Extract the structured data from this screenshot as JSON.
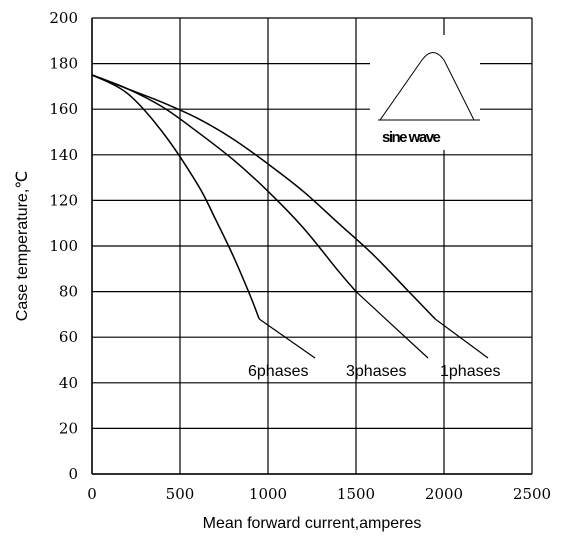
{
  "chart_data": {
    "type": "line",
    "xlabel": "Mean forward  current,amperes",
    "ylabel": "Case temperature,℃",
    "xlim": [
      0,
      2500
    ],
    "ylim": [
      0,
      200
    ],
    "xticks": [
      0,
      500,
      1000,
      1500,
      2000,
      2500
    ],
    "yticks": [
      0,
      20,
      40,
      60,
      80,
      100,
      120,
      140,
      160,
      180,
      200
    ],
    "grid": true,
    "series": [
      {
        "name": "6phases",
        "x": [
          0,
          200,
          400,
          600,
          700,
          800,
          900,
          950
        ],
        "y": [
          175,
          167,
          150,
          127,
          112,
          96,
          78,
          68
        ]
      },
      {
        "name": "3phases",
        "x": [
          0,
          200,
          400,
          600,
          800,
          1000,
          1200,
          1400,
          1500
        ],
        "y": [
          175,
          169,
          161,
          150,
          138,
          124,
          108,
          89,
          80
        ]
      },
      {
        "name": "1phases",
        "x": [
          0,
          200,
          400,
          600,
          800,
          1000,
          1200,
          1400,
          1600,
          1800,
          1950
        ],
        "y": [
          175,
          169,
          163,
          156,
          147,
          136,
          124,
          110,
          96,
          80,
          68
        ]
      }
    ],
    "annotations": [
      "6phases",
      "3phases",
      "1phases"
    ],
    "inset": {
      "label": "sine wave"
    }
  }
}
